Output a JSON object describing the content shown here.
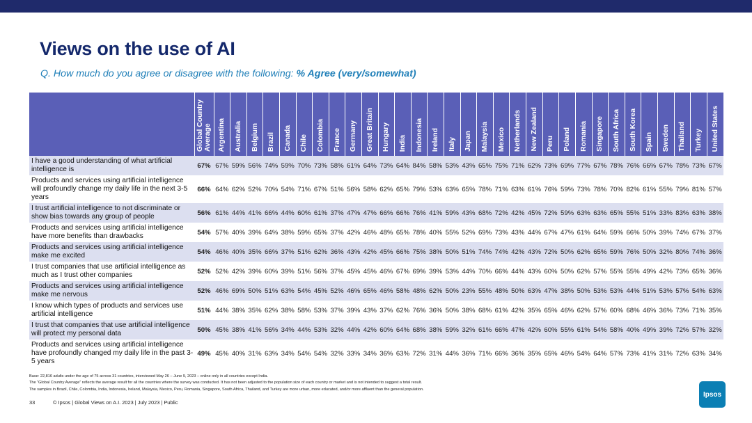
{
  "header": {
    "title": "Views on the use of AI",
    "question": "Q. How much do you agree or disagree with the following: ",
    "question_emphasis": "% Agree (very/somewhat)"
  },
  "table": {
    "columns": [
      "Global Country Average",
      "Argentina",
      "Australia",
      "Belgium",
      "Brazil",
      "Canada",
      "Chile",
      "Colombia",
      "France",
      "Germany",
      "Great Britain",
      "Hungary",
      "India",
      "Indonesia",
      "Ireland",
      "Italy",
      "Japan",
      "Malaysia",
      "Mexico",
      "Netherlands",
      "New Zealand",
      "Peru",
      "Poland",
      "Romania",
      "Singapore",
      "South Africa",
      "South Korea",
      "Spain",
      "Sweden",
      "Thailand",
      "Turkey",
      "United States"
    ],
    "rows": [
      {
        "label": "I have a good understanding of what artificial intelligence is",
        "values": [
          "67%",
          "67%",
          "59%",
          "56%",
          "74%",
          "59%",
          "70%",
          "73%",
          "58%",
          "61%",
          "64%",
          "73%",
          "64%",
          "84%",
          "58%",
          "53%",
          "43%",
          "65%",
          "75%",
          "71%",
          "62%",
          "73%",
          "69%",
          "77%",
          "67%",
          "78%",
          "76%",
          "66%",
          "67%",
          "78%",
          "73%",
          "67%"
        ]
      },
      {
        "label": "Products and services using artificial intelligence will profoundly change my daily life in the next 3-5 years",
        "values": [
          "66%",
          "64%",
          "62%",
          "52%",
          "70%",
          "54%",
          "71%",
          "67%",
          "51%",
          "56%",
          "58%",
          "62%",
          "65%",
          "79%",
          "53%",
          "63%",
          "65%",
          "78%",
          "71%",
          "63%",
          "61%",
          "76%",
          "59%",
          "73%",
          "78%",
          "70%",
          "82%",
          "61%",
          "55%",
          "79%",
          "81%",
          "57%"
        ]
      },
      {
        "label": "I trust artificial intelligence to not discriminate or show bias towards any group of people",
        "values": [
          "56%",
          "61%",
          "44%",
          "41%",
          "66%",
          "44%",
          "60%",
          "61%",
          "37%",
          "47%",
          "47%",
          "66%",
          "66%",
          "76%",
          "41%",
          "59%",
          "43%",
          "68%",
          "72%",
          "42%",
          "45%",
          "72%",
          "59%",
          "63%",
          "63%",
          "65%",
          "55%",
          "51%",
          "33%",
          "83%",
          "63%",
          "38%"
        ]
      },
      {
        "label": "Products and services using artificial intelligence have more benefits than drawbacks",
        "values": [
          "54%",
          "57%",
          "40%",
          "39%",
          "64%",
          "38%",
          "59%",
          "65%",
          "37%",
          "42%",
          "46%",
          "48%",
          "65%",
          "78%",
          "40%",
          "55%",
          "52%",
          "69%",
          "73%",
          "43%",
          "44%",
          "67%",
          "47%",
          "61%",
          "64%",
          "59%",
          "66%",
          "50%",
          "39%",
          "74%",
          "67%",
          "37%"
        ]
      },
      {
        "label": "Products and services using artificial intelligence make me excited",
        "values": [
          "54%",
          "46%",
          "40%",
          "35%",
          "66%",
          "37%",
          "51%",
          "62%",
          "36%",
          "43%",
          "42%",
          "45%",
          "66%",
          "75%",
          "38%",
          "50%",
          "51%",
          "74%",
          "74%",
          "42%",
          "43%",
          "72%",
          "50%",
          "62%",
          "65%",
          "59%",
          "76%",
          "50%",
          "32%",
          "80%",
          "74%",
          "36%"
        ]
      },
      {
        "label": "I trust companies that use artificial intelligence as much as I trust other companies",
        "values": [
          "52%",
          "52%",
          "42%",
          "39%",
          "60%",
          "39%",
          "51%",
          "56%",
          "37%",
          "45%",
          "45%",
          "46%",
          "67%",
          "69%",
          "39%",
          "53%",
          "44%",
          "70%",
          "66%",
          "44%",
          "43%",
          "60%",
          "50%",
          "62%",
          "57%",
          "55%",
          "55%",
          "49%",
          "42%",
          "73%",
          "65%",
          "36%"
        ]
      },
      {
        "label": "Products and services using artificial intelligence make me nervous",
        "values": [
          "52%",
          "46%",
          "69%",
          "50%",
          "51%",
          "63%",
          "54%",
          "45%",
          "52%",
          "46%",
          "65%",
          "46%",
          "58%",
          "48%",
          "62%",
          "50%",
          "23%",
          "55%",
          "48%",
          "50%",
          "63%",
          "47%",
          "38%",
          "50%",
          "53%",
          "53%",
          "44%",
          "51%",
          "53%",
          "57%",
          "54%",
          "63%"
        ]
      },
      {
        "label": "I know which types of products and services use artificial intelligence",
        "values": [
          "51%",
          "44%",
          "38%",
          "35%",
          "62%",
          "38%",
          "58%",
          "53%",
          "37%",
          "39%",
          "43%",
          "37%",
          "62%",
          "76%",
          "36%",
          "50%",
          "38%",
          "68%",
          "61%",
          "42%",
          "35%",
          "65%",
          "46%",
          "62%",
          "57%",
          "60%",
          "68%",
          "46%",
          "36%",
          "73%",
          "71%",
          "35%"
        ]
      },
      {
        "label": "I trust that companies that use artificial intelligence will protect my personal data",
        "values": [
          "50%",
          "45%",
          "38%",
          "41%",
          "56%",
          "34%",
          "44%",
          "53%",
          "32%",
          "44%",
          "42%",
          "60%",
          "64%",
          "68%",
          "38%",
          "59%",
          "32%",
          "61%",
          "66%",
          "47%",
          "42%",
          "60%",
          "55%",
          "61%",
          "54%",
          "58%",
          "40%",
          "49%",
          "39%",
          "72%",
          "57%",
          "32%"
        ]
      },
      {
        "label": "Products and services using artificial intelligence have profoundly changed my daily life in the past 3-5 years",
        "values": [
          "49%",
          "45%",
          "40%",
          "31%",
          "63%",
          "34%",
          "54%",
          "54%",
          "32%",
          "33%",
          "34%",
          "36%",
          "63%",
          "72%",
          "31%",
          "44%",
          "36%",
          "71%",
          "66%",
          "36%",
          "35%",
          "65%",
          "46%",
          "54%",
          "64%",
          "57%",
          "73%",
          "41%",
          "31%",
          "72%",
          "63%",
          "34%"
        ]
      }
    ]
  },
  "notes": {
    "base": "Base: 22,816 adults under the age of 75 across 31 countries, interviewed May 26 – June 9, 2023 – online only in all countries except India.",
    "gca": "The “Global Country Average” reflects the average result for all the countries where the survey was conducted. It has not been adjusted to the population size of each country or market and is not intended to suggest a total result.",
    "samples": "The samples in Brazil, Chile, Colombia, India, Indonesia, Ireland, Malaysia, Mexico, Peru, Romania, Singapore, South Africa, Thailand, and Turkey are more urban, more educated, and/or more affluent than the general population."
  },
  "footer": {
    "page": "33",
    "text": "© Ipsos | Global Views on A.I. 2023 | July 2023 | Public",
    "logo": "Ipsos"
  },
  "colors": {
    "topbar": "#1f2a6b",
    "title": "#14286b",
    "subtitle": "#1f7fb8",
    "header_fill": "#5a5fb7",
    "row_band": "#dcdff0",
    "logo": "#0b7fb4"
  }
}
